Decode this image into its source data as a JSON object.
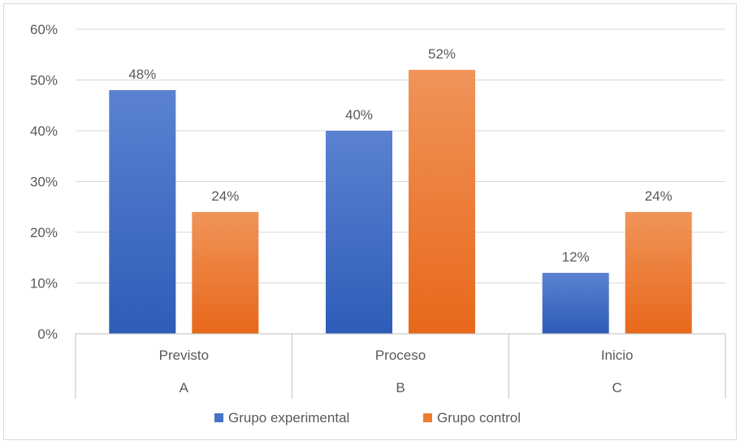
{
  "chart_data": {
    "type": "bar",
    "categories": [
      {
        "top": "Previsto",
        "bottom": "A"
      },
      {
        "top": "Proceso",
        "bottom": "B"
      },
      {
        "top": "Inicio",
        "bottom": "C"
      }
    ],
    "series": [
      {
        "name": "Grupo experimental",
        "values": [
          48,
          40,
          12
        ],
        "labels": [
          "48%",
          "40%",
          "12%"
        ],
        "color": "#4472C4",
        "color_top": "#5B82D1",
        "color_bottom": "#2E5CB8"
      },
      {
        "name": "Grupo control",
        "values": [
          24,
          52,
          24
        ],
        "labels": [
          "24%",
          "52%",
          "24%"
        ],
        "color": "#ED7D31",
        "color_top": "#F0945A",
        "color_bottom": "#E8681A"
      }
    ],
    "ylim": [
      0,
      60
    ],
    "yticks": [
      0,
      10,
      20,
      30,
      40,
      50,
      60
    ],
    "ytick_labels": [
      "0%",
      "10%",
      "20%",
      "30%",
      "40%",
      "50%",
      "60%"
    ],
    "grid": true,
    "legend_position": "bottom",
    "colors": {
      "grid": "#d9d9d9",
      "axis": "#bfbfbf",
      "text": "#595959"
    }
  }
}
